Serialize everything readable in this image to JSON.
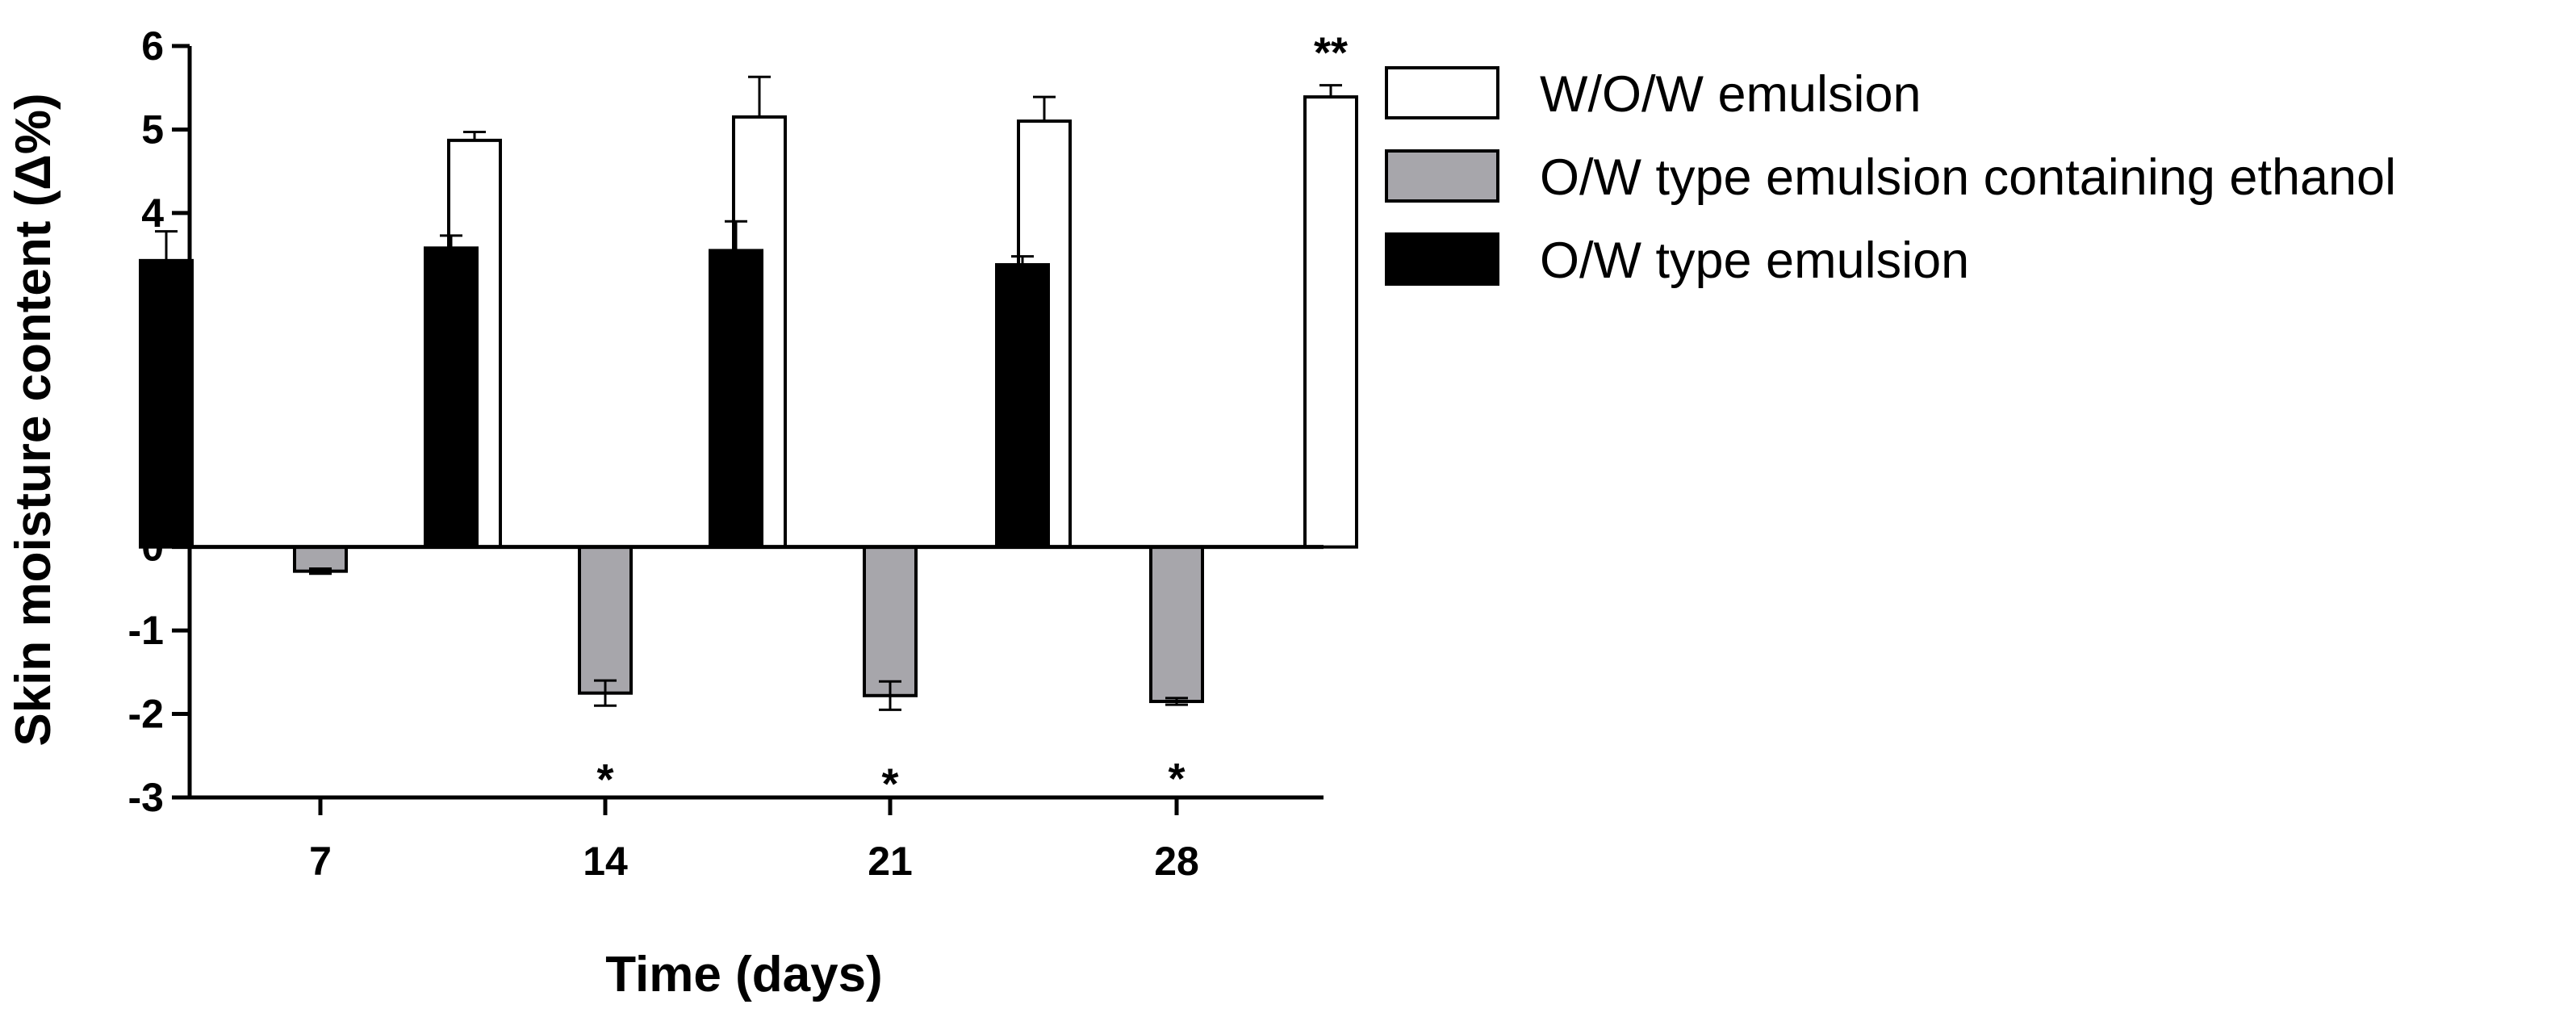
{
  "chart_data": {
    "type": "bar",
    "xlabel": "Time (days)",
    "ylabel": "Skin moisture content (Δ%)",
    "categories": [
      "7",
      "14",
      "21",
      "28"
    ],
    "ylim": [
      -3,
      6
    ],
    "yticks": [
      "-3",
      "-2",
      "-1",
      "0",
      "1",
      "2",
      "3",
      "4",
      "5",
      "6"
    ],
    "series": [
      {
        "name": "O/W type emulsion",
        "color": "#000000",
        "values": [
          3.43,
          3.58,
          3.55,
          3.38
        ],
        "errors": [
          0.35,
          0.15,
          0.35,
          0.1
        ]
      },
      {
        "name": "O/W type emulsion containing ethanol",
        "color": "#a7a6ab",
        "values": [
          -0.29,
          -1.75,
          -1.78,
          -1.85
        ],
        "errors": [
          0.03,
          0.15,
          0.17,
          0.04
        ]
      },
      {
        "name": "W/O/W emulsion",
        "color": "#ffffff",
        "values": [
          4.87,
          5.15,
          5.1,
          5.39
        ],
        "errors": [
          0.1,
          0.48,
          0.29,
          0.14
        ]
      }
    ],
    "legend": {
      "placement": "right",
      "order": [
        "W/O/W emulsion",
        "O/W type emulsion containing ethanol",
        "O/W type emulsion"
      ]
    },
    "annotations": [
      {
        "text": "*",
        "category": "14",
        "series": "O/W type emulsion containing ethanol",
        "position": "below"
      },
      {
        "text": "*",
        "category": "21",
        "series": "O/W type emulsion containing ethanol",
        "position": "below"
      },
      {
        "text": "*",
        "category": "28",
        "series": "O/W type emulsion containing ethanol",
        "position": "below"
      },
      {
        "text": "**",
        "category": "28",
        "series": "W/O/W emulsion",
        "position": "above"
      }
    ],
    "grid": false
  }
}
